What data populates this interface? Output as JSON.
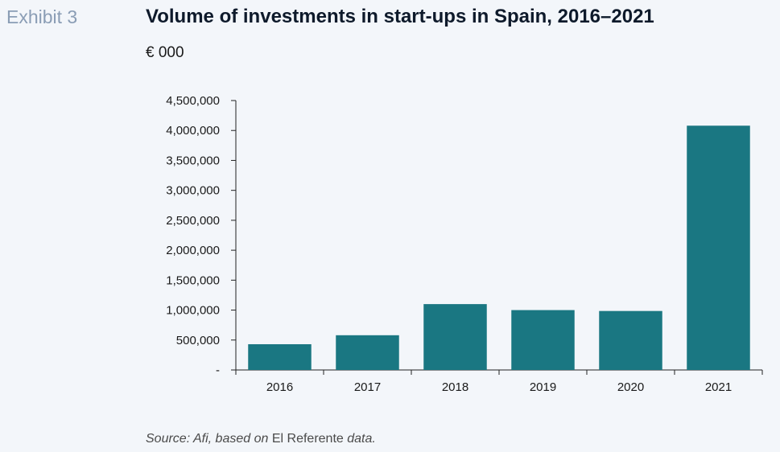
{
  "header": {
    "exhibit": "Exhibit 3",
    "title": "Volume of investments in start-ups in Spain, 2016–2021",
    "unit": "€ 000"
  },
  "footer": {
    "source_prefix": "Source: Afi, based on ",
    "source_name": "El Referente",
    "source_suffix": " data."
  },
  "chart_data": {
    "type": "bar",
    "categories": [
      "2016",
      "2017",
      "2018",
      "2019",
      "2020",
      "2021"
    ],
    "values": [
      430000,
      580000,
      1100000,
      1000000,
      985000,
      4080000
    ],
    "ylim": [
      0,
      4500000
    ],
    "yticks": [
      0,
      500000,
      1000000,
      1500000,
      2000000,
      2500000,
      3000000,
      3500000,
      4000000,
      4500000
    ],
    "ytick_labels": [
      "-",
      "500,000",
      "1,000,000",
      "1,500,000",
      "2,000,000",
      "2,500,000",
      "3,000,000",
      "3,500,000",
      "4,000,000",
      "4,500,000"
    ],
    "bar_color": "#1a7782",
    "axis_color": "#222222",
    "grid": false,
    "legend": false
  }
}
